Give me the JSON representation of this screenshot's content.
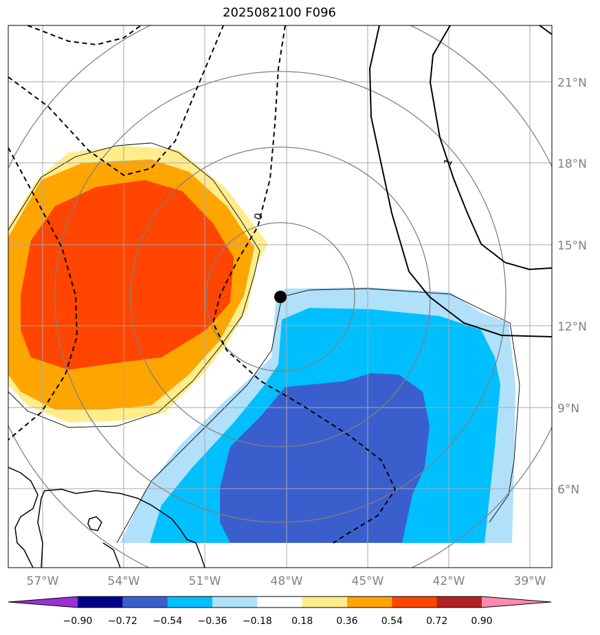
{
  "title": "2025082100 F096",
  "map": {
    "lat_range": [
      3.0,
      23.0
    ],
    "lon_range": [
      -58.2,
      -38.2
    ],
    "lat_ticks": [
      "21°N",
      "18°N",
      "15°N",
      "12°N",
      "9°N",
      "6°N"
    ],
    "lon_ticks": [
      "57°W",
      "54°W",
      "51°W",
      "48°W",
      "45°W",
      "42°W",
      "39°W"
    ],
    "center_marker": {
      "lon": -48.3,
      "lat": 13.1
    },
    "contour_labels": [
      "0",
      "1"
    ],
    "gridline_color": "#a9a9a9",
    "ring_color": "#808080"
  },
  "colorbar": {
    "ticks": [
      "−0.90",
      "−0.72",
      "−0.54",
      "−0.36",
      "−0.18",
      "0.18",
      "0.36",
      "0.54",
      "0.72",
      "0.90"
    ],
    "colors": [
      "#9b30d9",
      "#00008b",
      "#3a5fcd",
      "#00bfff",
      "#b0e0fa",
      "#ffffff",
      "#ffec8b",
      "#ffa500",
      "#ff4500",
      "#b22222",
      "#ff88b0",
      "#ff88b0"
    ]
  }
}
